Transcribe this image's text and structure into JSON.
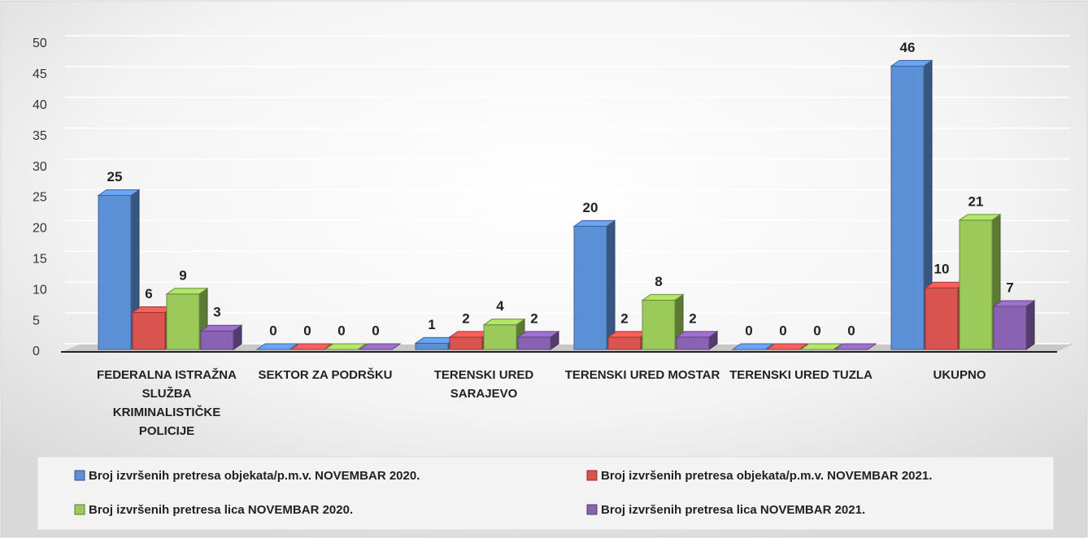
{
  "chart_data": {
    "type": "bar3d",
    "categories": [
      "FEDERALNA ISTRAŽNA SLUŽBA KRIMINALISTIČKE POLICIJE",
      "SEKTOR ZA PODRŠKU",
      "TERENSKI URED SARAJEVO",
      "TERENSKI URED MOSTAR",
      "TERENSKI URED TUZLA",
      "UKUPNO"
    ],
    "series": [
      {
        "name": "Broj izvršenih pretresa objekata/p.m.v. NOVEMBAR 2020.",
        "color": "#5b8fd6",
        "values": [
          25,
          0,
          1,
          20,
          0,
          46
        ]
      },
      {
        "name": "Broj izvršenih pretresa objekata/p.m.v. NOVEMBAR 2021.",
        "color": "#d9534f",
        "values": [
          6,
          0,
          2,
          2,
          0,
          10
        ]
      },
      {
        "name": "Broj izvršenih pretresa lica NOVEMBAR 2020.",
        "color": "#9bc95a",
        "values": [
          9,
          0,
          4,
          8,
          0,
          21
        ]
      },
      {
        "name": "Broj izvršenih pretresa lica NOVEMBAR 2021.",
        "color": "#8a62b3",
        "values": [
          3,
          0,
          2,
          2,
          0,
          7
        ]
      }
    ],
    "ylim": [
      0,
      50
    ],
    "yticks": [
      0,
      5,
      10,
      15,
      20,
      25,
      30,
      35,
      40,
      45,
      50
    ],
    "grid": true
  }
}
